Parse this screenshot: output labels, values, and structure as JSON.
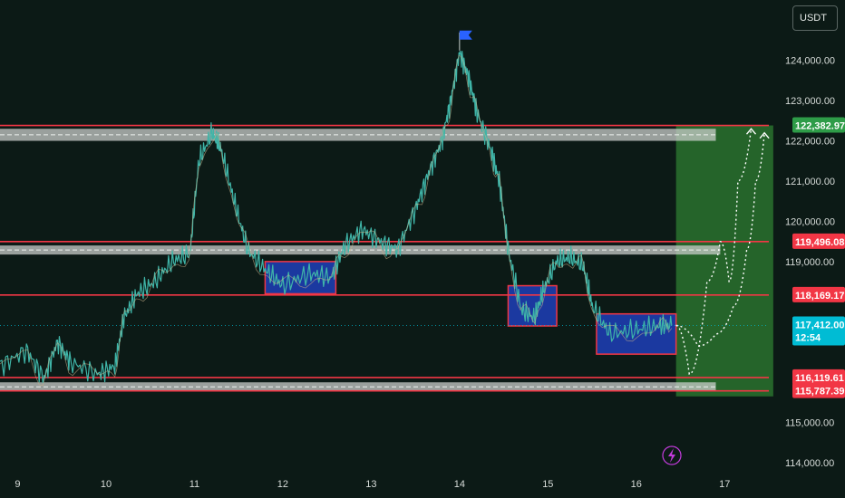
{
  "currency_label": "USDT",
  "chart_data": {
    "type": "line",
    "title": "",
    "xlabel": "",
    "ylabel": "",
    "x_tick_labels": [
      "9",
      "10",
      "11",
      "12",
      "13",
      "14",
      "15",
      "16",
      "17"
    ],
    "y_tick_labels": [
      "124,000.00",
      "123,000.00",
      "122,000.00",
      "121,000.00",
      "120,000.00",
      "119,000.00",
      "115,000.00",
      "114,000.00"
    ],
    "ylim": [
      113800,
      125500
    ],
    "xlim": [
      8.8,
      17.5
    ],
    "series": [
      {
        "x": [
          8.8,
          9.1,
          9.3,
          9.45,
          9.6,
          9.9,
          10.1,
          10.2,
          10.35,
          10.55,
          10.75,
          10.95,
          11.05,
          11.2,
          11.3,
          11.45,
          11.6,
          11.8,
          12.0,
          12.3,
          12.55,
          12.7,
          12.9,
          13.1,
          13.3,
          13.5,
          13.65,
          13.8,
          13.9,
          14.0,
          14.1,
          14.2,
          14.35,
          14.45,
          14.55,
          14.7,
          14.85,
          14.95,
          15.1,
          15.25,
          15.4,
          15.5,
          15.7,
          16.0,
          16.25,
          16.4
        ],
        "y": [
          116400,
          116800,
          116100,
          117000,
          116500,
          116200,
          116400,
          117600,
          118200,
          118500,
          119000,
          119200,
          121500,
          122200,
          121800,
          120500,
          119300,
          118800,
          118400,
          118700,
          118600,
          119400,
          119800,
          119500,
          119300,
          120300,
          121200,
          122000,
          123000,
          124200,
          123600,
          122700,
          121800,
          121000,
          119300,
          117800,
          117600,
          118300,
          119000,
          119100,
          118900,
          117900,
          117200,
          117300,
          117400,
          117412
        ]
      }
    ],
    "horizontal_levels": [
      {
        "label": "122,382.97",
        "value": 122382.97,
        "color": "#2e9c48"
      },
      {
        "label": "119,496.08",
        "value": 119496.08,
        "color": "#f23645"
      },
      {
        "label": "118,169.17",
        "value": 118169.17,
        "color": "#f23645"
      },
      {
        "label": "116,119.61",
        "value": 116119.61,
        "color": "#f23645"
      },
      {
        "label": "115,787.39",
        "value": 115787.39,
        "color": "#f23645"
      }
    ],
    "current_price": {
      "label": "117,412.00",
      "value": 117412,
      "countdown": "12:54",
      "color": "#00bcd4"
    },
    "grey_zones": [
      {
        "x0": 8.8,
        "x1": 16.9,
        "y0": 122000,
        "y1": 122300
      },
      {
        "x0": 8.8,
        "x1": 16.95,
        "y0": 119200,
        "y1": 119400
      },
      {
        "x0": 8.8,
        "x1": 16.9,
        "y0": 115800,
        "y1": 116000
      }
    ],
    "blue_boxes": [
      {
        "x0": 11.8,
        "x1": 12.6,
        "y0": 118200,
        "y1": 119000
      },
      {
        "x0": 14.55,
        "x1": 15.1,
        "y0": 117400,
        "y1": 118400
      },
      {
        "x0": 15.55,
        "x1": 16.45,
        "y0": 116700,
        "y1": 117700
      }
    ],
    "target_zone": {
      "x0": 16.45,
      "x1": 17.55,
      "y0": 115650,
      "y1": 122382.97,
      "color": "#2e7d32"
    },
    "projection_paths": [
      {
        "x": [
          16.45,
          16.6,
          16.8,
          16.95,
          17.05,
          17.15,
          17.3
        ],
        "y": [
          117412,
          116200,
          118500,
          119500,
          118500,
          121000,
          122300
        ]
      },
      {
        "x": [
          16.45,
          16.7,
          16.9,
          17.1,
          17.25,
          17.35,
          17.45
        ],
        "y": [
          117412,
          116900,
          117200,
          117900,
          119300,
          121000,
          122200
        ]
      }
    ]
  }
}
